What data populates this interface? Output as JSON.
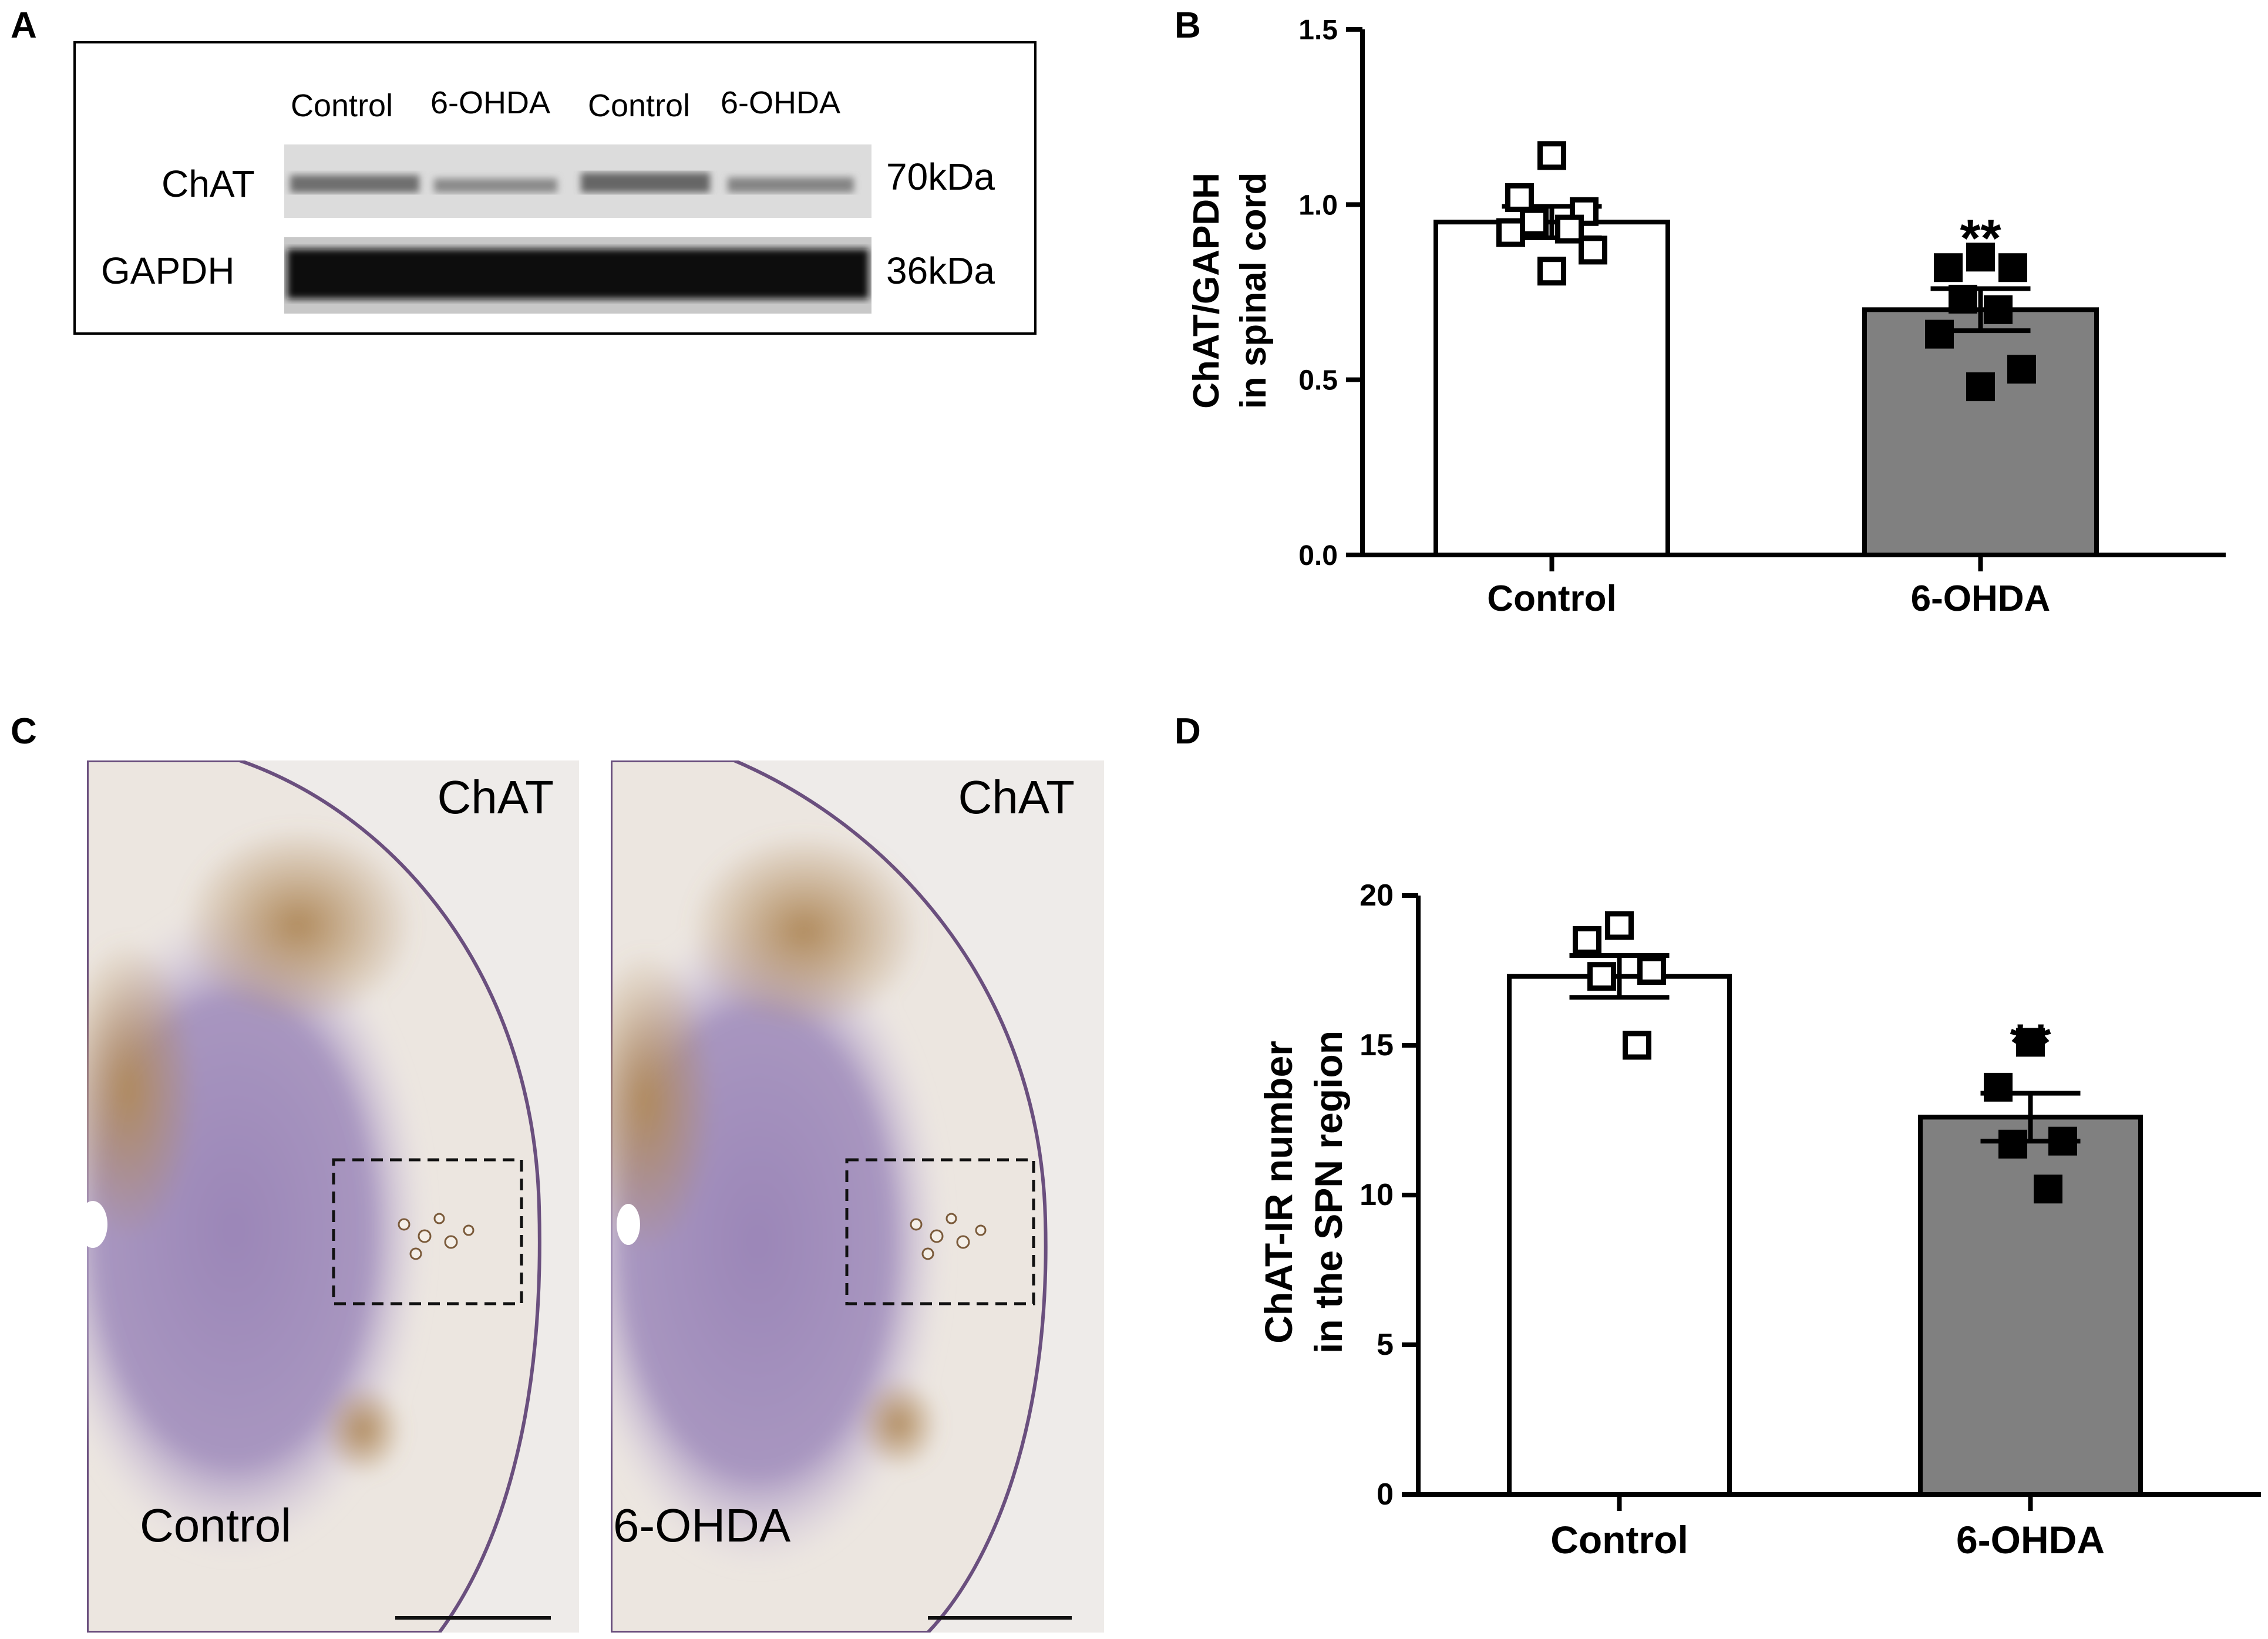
{
  "panels": {
    "A": {
      "letter": "A",
      "lanes": [
        "Control",
        "6-OHDA",
        "Control",
        "6-OHDA"
      ],
      "rows": [
        {
          "label": "ChAT",
          "kda": "70kDa"
        },
        {
          "label": "GAPDH",
          "kda": "36kDa"
        }
      ]
    },
    "B": {
      "letter": "B"
    },
    "C": {
      "letter": "C",
      "images": [
        {
          "stain": "ChAT",
          "group": "Control"
        },
        {
          "stain": "ChAT",
          "group": "6-OHDA"
        }
      ]
    },
    "D": {
      "letter": "D"
    }
  },
  "chart_data": [
    {
      "type": "bar",
      "panel": "B",
      "categories": [
        "Control",
        "6-OHDA"
      ],
      "values": [
        0.95,
        0.7
      ],
      "sem": [
        0.045,
        0.06
      ],
      "points": [
        [
          1.14,
          1.02,
          0.98,
          0.95,
          0.93,
          0.92,
          0.87,
          0.81
        ],
        [
          0.85,
          0.82,
          0.82,
          0.73,
          0.7,
          0.63,
          0.53,
          0.48
        ]
      ],
      "marker_style": [
        "open-square",
        "filled-square"
      ],
      "bar_colors": [
        "#ffffff",
        "#808080"
      ],
      "significance": [
        "",
        "**"
      ],
      "ylabel": [
        "ChAT/GAPDH",
        "in spinal cord"
      ],
      "ylim": [
        0,
        1.5
      ],
      "yticks": [
        0.0,
        0.5,
        1.0,
        1.5
      ],
      "ytick_labels": [
        "0.0",
        "0.5",
        "1.0",
        "1.5"
      ]
    },
    {
      "type": "bar",
      "panel": "D",
      "categories": [
        "Control",
        "6-OHDA"
      ],
      "values": [
        17.3,
        12.6
      ],
      "sem": [
        0.7,
        0.8
      ],
      "points": [
        [
          19,
          18.5,
          17.5,
          17.3,
          15
        ],
        [
          15.1,
          13.6,
          11.8,
          11.7,
          10.2
        ]
      ],
      "marker_style": [
        "open-square",
        "filled-square"
      ],
      "bar_colors": [
        "#ffffff",
        "#808080"
      ],
      "significance": [
        "",
        "**"
      ],
      "ylabel": [
        "ChAT-IR number",
        "in the SPN region"
      ],
      "ylim": [
        0,
        20
      ],
      "yticks": [
        0,
        5,
        10,
        15,
        20
      ],
      "ytick_labels": [
        "0",
        "5",
        "10",
        "15",
        "20"
      ]
    }
  ]
}
